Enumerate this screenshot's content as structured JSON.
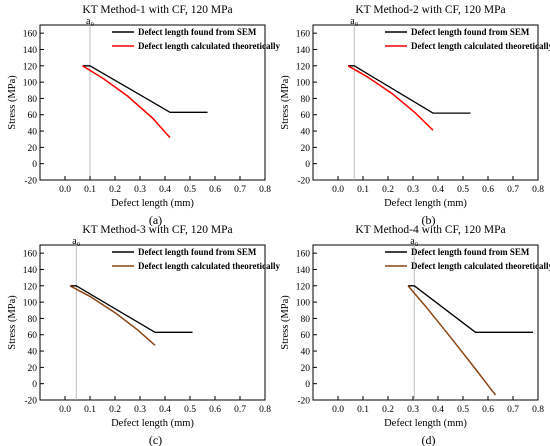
{
  "chart_data": [
    {
      "type": "line",
      "title": "KT Method-1 with CF, 120 MPa",
      "panel_label": "(a)",
      "xlabel": "Defect length (mm)",
      "ylabel": "Stress (MPa)",
      "xlim": [
        -0.1,
        0.8
      ],
      "ylim": [
        -20,
        170
      ],
      "xticks": [
        "0.0",
        "0.1",
        "0.2",
        "0.3",
        "0.4",
        "0.5",
        "0.6",
        "0.7",
        "0.8"
      ],
      "yticks": [
        "-20",
        "0",
        "20",
        "40",
        "60",
        "80",
        "100",
        "120",
        "140",
        "160"
      ],
      "grid": false,
      "legend_position": "top-right",
      "a0_label": "a₀",
      "a0_x": 0.1,
      "series": [
        {
          "name": "Defect length found from SEM",
          "color": "#000000",
          "x": [
            0.07,
            0.1,
            0.42,
            0.57
          ],
          "y": [
            120,
            120,
            63,
            63
          ]
        },
        {
          "name": "Defect length calculated theoretically",
          "color": "#ff0000",
          "x": [
            0.07,
            0.15,
            0.25,
            0.35,
            0.42
          ],
          "y": [
            120,
            105,
            83,
            56,
            32
          ]
        }
      ]
    },
    {
      "type": "line",
      "title": "KT Method-2 with CF, 120 MPa",
      "panel_label": "(b)",
      "xlabel": "Defect length (mm)",
      "ylabel": "Stress (MPa)",
      "xlim": [
        -0.1,
        0.8
      ],
      "ylim": [
        -20,
        170
      ],
      "xticks": [
        "0.0",
        "0.1",
        "0.2",
        "0.3",
        "0.4",
        "0.5",
        "0.6",
        "0.7",
        "0.8"
      ],
      "yticks": [
        "-20",
        "0",
        "20",
        "40",
        "60",
        "80",
        "100",
        "120",
        "140",
        "160"
      ],
      "grid": false,
      "legend_position": "top-right",
      "a0_label": "a₀",
      "a0_x": 0.065,
      "series": [
        {
          "name": "Defect length found from SEM",
          "color": "#000000",
          "x": [
            0.04,
            0.065,
            0.38,
            0.53
          ],
          "y": [
            120,
            120,
            62,
            62
          ]
        },
        {
          "name": "Defect length calculated theoretically",
          "color": "#ff0000",
          "x": [
            0.04,
            0.12,
            0.22,
            0.31,
            0.38
          ],
          "y": [
            120,
            106,
            85,
            62,
            41
          ]
        }
      ]
    },
    {
      "type": "line",
      "title": "KT Method-3 with CF, 120 MPa",
      "panel_label": "(c)",
      "xlabel": "Defect length (mm)",
      "ylabel": "Stress (MPa)",
      "xlim": [
        -0.1,
        0.8
      ],
      "ylim": [
        -20,
        170
      ],
      "xticks": [
        "0.0",
        "0.1",
        "0.2",
        "0.3",
        "0.4",
        "0.5",
        "0.6",
        "0.7",
        "0.8"
      ],
      "yticks": [
        "-20",
        "0",
        "20",
        "40",
        "60",
        "80",
        "100",
        "120",
        "140",
        "160"
      ],
      "grid": false,
      "legend_position": "top-right",
      "a0_label": "a₀",
      "a0_x": 0.045,
      "series": [
        {
          "name": "Defect length found from SEM",
          "color": "#000000",
          "x": [
            0.02,
            0.045,
            0.36,
            0.51
          ],
          "y": [
            120,
            120,
            63,
            63
          ]
        },
        {
          "name": "Defect length calculated theoretically",
          "color": "#8b4513",
          "x": [
            0.02,
            0.1,
            0.2,
            0.29,
            0.36
          ],
          "y": [
            120,
            107,
            87,
            66,
            47
          ]
        }
      ]
    },
    {
      "type": "line",
      "title": "KT Method-4 with CF, 120 MPa",
      "panel_label": "(d)",
      "xlabel": "Defect length (mm)",
      "ylabel": "Stress (MPa)",
      "xlim": [
        -0.1,
        0.8
      ],
      "ylim": [
        -20,
        170
      ],
      "xticks": [
        "0.0",
        "0.1",
        "0.2",
        "0.3",
        "0.4",
        "0.5",
        "0.6",
        "0.7",
        "0.8"
      ],
      "yticks": [
        "-20",
        "0",
        "20",
        "40",
        "60",
        "80",
        "100",
        "120",
        "140",
        "160"
      ],
      "grid": false,
      "legend_position": "top-right",
      "a0_label": "a₀",
      "a0_x": 0.305,
      "series": [
        {
          "name": "Defect length found from SEM",
          "color": "#000000",
          "x": [
            0.28,
            0.305,
            0.55,
            0.78
          ],
          "y": [
            120,
            120,
            63,
            63
          ]
        },
        {
          "name": "Defect length calculated theoretically",
          "color": "#8b4513",
          "x": [
            0.28,
            0.35,
            0.45,
            0.55,
            0.63
          ],
          "y": [
            120,
            95,
            57,
            18,
            -14
          ]
        }
      ]
    }
  ]
}
